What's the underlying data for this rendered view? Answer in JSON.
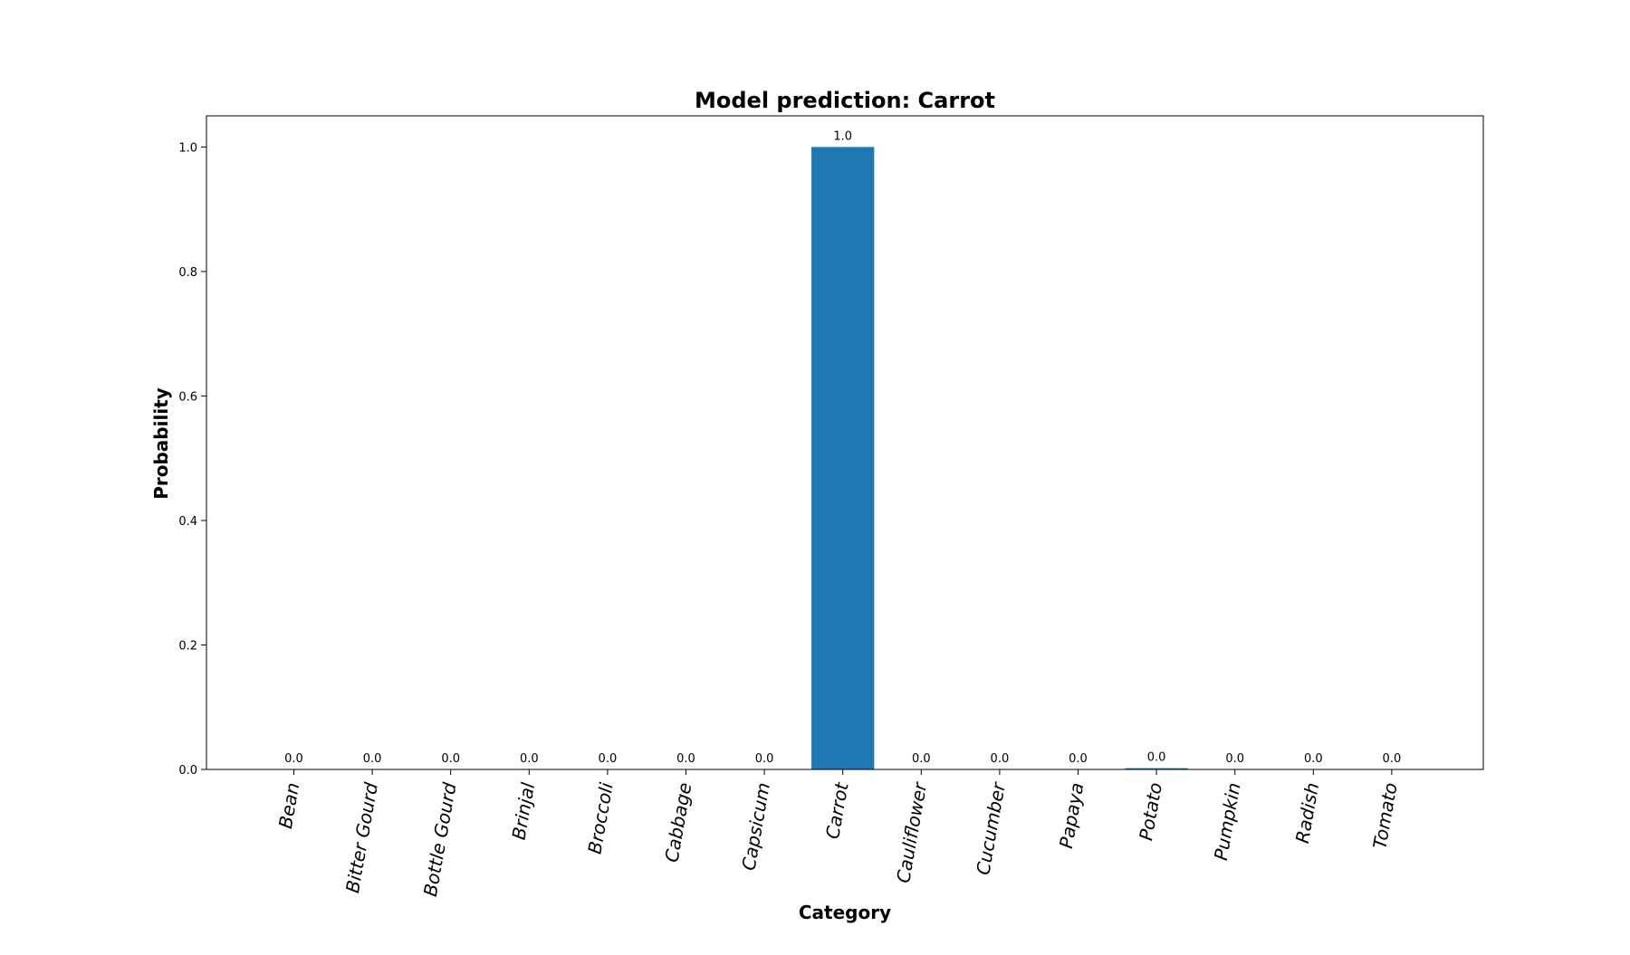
{
  "chart_data": {
    "type": "bar",
    "title": "Model prediction: Carrot",
    "xlabel": "Category",
    "ylabel": "Probability",
    "categories": [
      "Bean",
      "Bitter Gourd",
      "Bottle Gourd",
      "Brinjal",
      "Broccoli",
      "Cabbage",
      "Capsicum",
      "Carrot",
      "Cauliflower",
      "Cucumber",
      "Papaya",
      "Potato",
      "Pumpkin",
      "Radish",
      "Tomato"
    ],
    "values": [
      0.0,
      0.0,
      0.0,
      0.0,
      0.0,
      0.0,
      0.0,
      1.0,
      0.0,
      0.0,
      0.0,
      0.002,
      0.0,
      0.0,
      0.0
    ],
    "data_labels": [
      "0.0",
      "0.0",
      "0.0",
      "0.0",
      "0.0",
      "0.0",
      "0.0",
      "1.0",
      "0.0",
      "0.0",
      "0.0",
      "0.0",
      "0.0",
      "0.0",
      "0.0"
    ],
    "yticks": [
      "0.0",
      "0.2",
      "0.4",
      "0.6",
      "0.8",
      "1.0"
    ],
    "ylim": [
      0,
      1.05
    ],
    "grid": false,
    "bar_color": "#1f77b4"
  }
}
